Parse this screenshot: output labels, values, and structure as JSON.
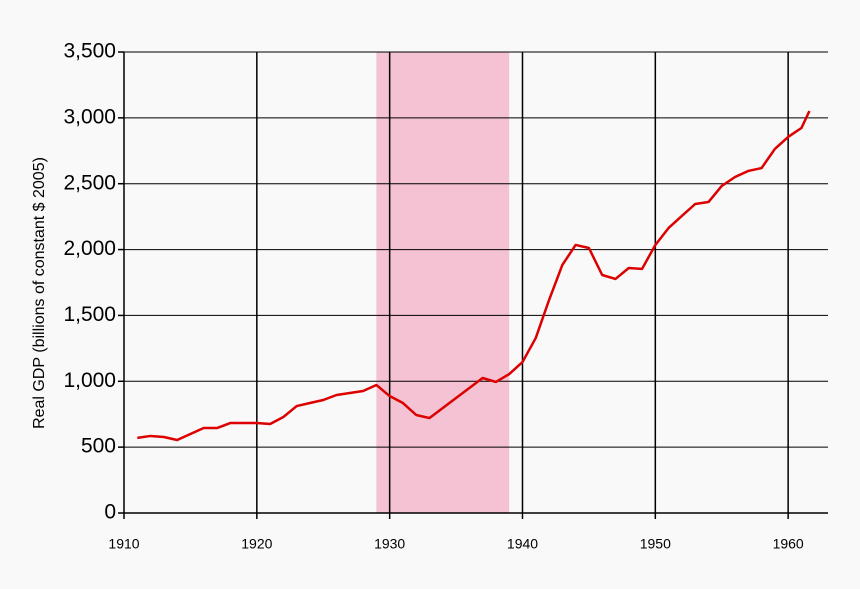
{
  "chart_data": {
    "type": "line",
    "y_label": "Real GDP (billions of  constant $ 2005)",
    "x": [
      1911,
      1912,
      1913,
      1914,
      1915,
      1916,
      1917,
      1918,
      1919,
      1920,
      1921,
      1922,
      1923,
      1924,
      1925,
      1926,
      1927,
      1928,
      1929,
      1930,
      1931,
      1932,
      1933,
      1934,
      1935,
      1936,
      1937,
      1938,
      1939,
      1940,
      1941,
      1942,
      1943,
      1944,
      1945,
      1946,
      1947,
      1948,
      1949,
      1950,
      1951,
      1952,
      1953,
      1954,
      1955,
      1956,
      1957,
      1958,
      1959,
      1960,
      1961,
      1961.6
    ],
    "series": [
      {
        "color": "#dd0000",
        "values": [
          570,
          585,
          577,
          554,
          600,
          645,
          645,
          683,
          683,
          683,
          676,
          729,
          812,
          835,
          858,
          896,
          911,
          926,
          972,
          888,
          835,
          744,
          721,
          797,
          873,
          949,
          1025,
          995,
          1055,
          1146,
          1329,
          1617,
          1883,
          2035,
          2012,
          1807,
          1777,
          1860,
          1853,
          2035,
          2164,
          2255,
          2346,
          2361,
          2483,
          2551,
          2597,
          2619,
          2764,
          2855,
          2923,
          3052
        ]
      }
    ],
    "highlight_x": [
      1929,
      1939
    ],
    "highlight_color": "#f4c2d2",
    "xlim": [
      1910,
      1963
    ],
    "xticks": [
      1910,
      1920,
      1930,
      1940,
      1950,
      1960
    ],
    "ylim": [
      0,
      3500
    ],
    "yticks": [
      0,
      500,
      {
        "value": 1000,
        "label": "1,000"
      },
      {
        "value": 1500,
        "label": "1,500"
      },
      {
        "value": 2000,
        "label": "2,000"
      },
      {
        "value": 2500,
        "label": "2,500"
      },
      {
        "value": 3000,
        "label": "3,000"
      },
      {
        "value": 3500,
        "label": "3,500"
      }
    ],
    "grid": true
  }
}
